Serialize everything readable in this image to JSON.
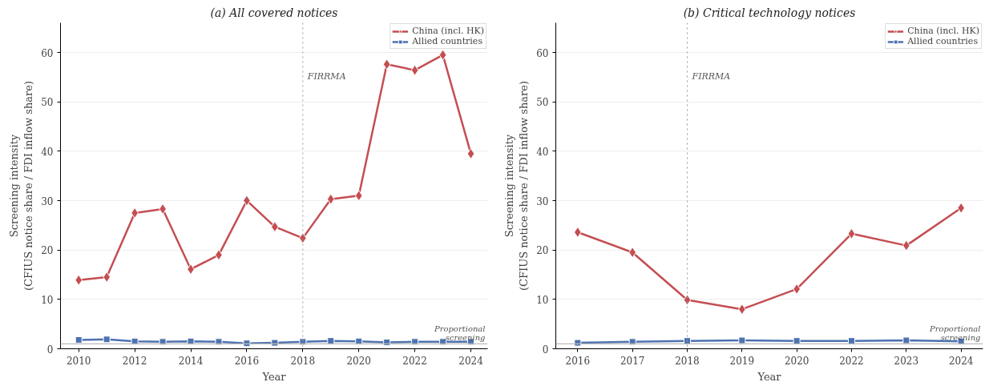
{
  "chart_data": [
    {
      "type": "line",
      "title": "(a) All covered notices",
      "xlabel": "Year",
      "ylabel": "Screening intensity\n(CFIUS notice share / FDI inflow share)",
      "x": [
        2010,
        2011,
        2012,
        2013,
        2014,
        2015,
        2016,
        2017,
        2018,
        2019,
        2020,
        2021,
        2022,
        2023,
        2024
      ],
      "xlim": [
        2009.35,
        2024.6
      ],
      "xticks": [
        2010,
        2012,
        2014,
        2016,
        2018,
        2020,
        2022,
        2024
      ],
      "ylim": [
        0,
        66
      ],
      "yticks": [
        0,
        10,
        20,
        30,
        40,
        50,
        60
      ],
      "grid": "y",
      "legend": "top right",
      "line_style": "solid",
      "series": [
        {
          "name": "China (incl. HK)",
          "color": "#c44e52",
          "marker": "diamond",
          "values": [
            13.9,
            14.5,
            27.5,
            28.3,
            16.1,
            19.0,
            30.0,
            24.7,
            22.4,
            30.3,
            31.0,
            57.6,
            56.4,
            59.5,
            39.5
          ]
        },
        {
          "name": "Allied countries",
          "color": "#4c72b0",
          "marker": "square",
          "values": [
            1.8,
            1.9,
            1.5,
            1.4,
            1.5,
            1.4,
            1.1,
            1.2,
            1.4,
            1.6,
            1.5,
            1.3,
            1.4,
            1.4,
            1.4
          ]
        }
      ],
      "ref_lines": [
        {
          "axis": "x",
          "value": 2018,
          "label": "FIRRMA",
          "color": "#999999",
          "line_style": "dotted"
        },
        {
          "axis": "y",
          "value": 1,
          "label": "Proportional\nscreening",
          "color": "#bbbbbb",
          "line_style": "solid"
        }
      ]
    },
    {
      "type": "line",
      "title": "(b) Critical technology notices",
      "xlabel": "Year",
      "ylabel": "Screening intensity\n(CFIUS notice share / FDI inflow share)",
      "categories": [
        "2016",
        "2017",
        "2018",
        "2019",
        "2020",
        "2022",
        "2023",
        "2024"
      ],
      "ylim": [
        0,
        66
      ],
      "yticks": [
        0,
        10,
        20,
        30,
        40,
        50,
        60
      ],
      "grid": "y",
      "legend": "top right",
      "line_style": "solid",
      "series": [
        {
          "name": "China (incl. HK)",
          "color": "#c44e52",
          "marker": "diamond",
          "values": [
            23.6,
            19.5,
            9.9,
            8.0,
            12.1,
            23.3,
            20.9,
            28.5
          ]
        },
        {
          "name": "Allied countries",
          "color": "#4c72b0",
          "marker": "square",
          "values": [
            1.2,
            1.4,
            1.6,
            1.7,
            1.6,
            1.6,
            1.7,
            1.5
          ]
        }
      ],
      "ref_lines": [
        {
          "axis": "x",
          "value": "2018",
          "label": "FIRRMA",
          "color": "#999999",
          "line_style": "dotted"
        },
        {
          "axis": "y",
          "value": 1,
          "label": "Proportional\nscreening",
          "color": "#bbbbbb",
          "line_style": "solid"
        }
      ]
    }
  ]
}
